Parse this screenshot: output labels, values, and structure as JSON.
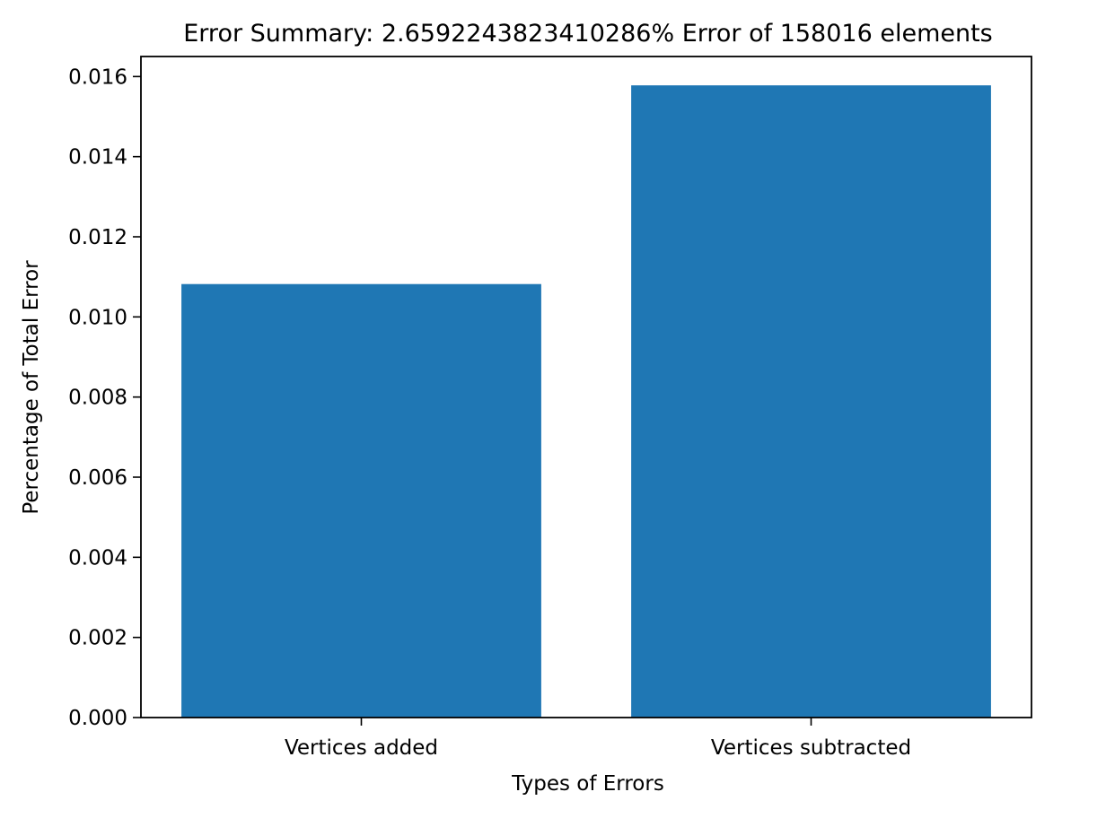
{
  "chart_data": {
    "type": "bar",
    "title": "Error Summary: 2.6592243823410286% Error of 158016 elements",
    "xlabel": "Types of Errors",
    "ylabel": "Percentage of Total Error",
    "categories": [
      "Vertices added",
      "Vertices subtracted"
    ],
    "values": [
      0.01082,
      0.01578
    ],
    "ylim": [
      0,
      0.0165
    ],
    "yticks": [
      "0.000",
      "0.002",
      "0.004",
      "0.006",
      "0.008",
      "0.010",
      "0.012",
      "0.014",
      "0.016"
    ],
    "ytick_values": [
      0,
      0.002,
      0.004,
      0.006,
      0.008,
      0.01,
      0.012,
      0.014,
      0.016
    ],
    "grid": false,
    "legend": "none",
    "colors": {
      "bar": "#1f77b4",
      "axis": "#000000",
      "background": "#ffffff"
    }
  }
}
